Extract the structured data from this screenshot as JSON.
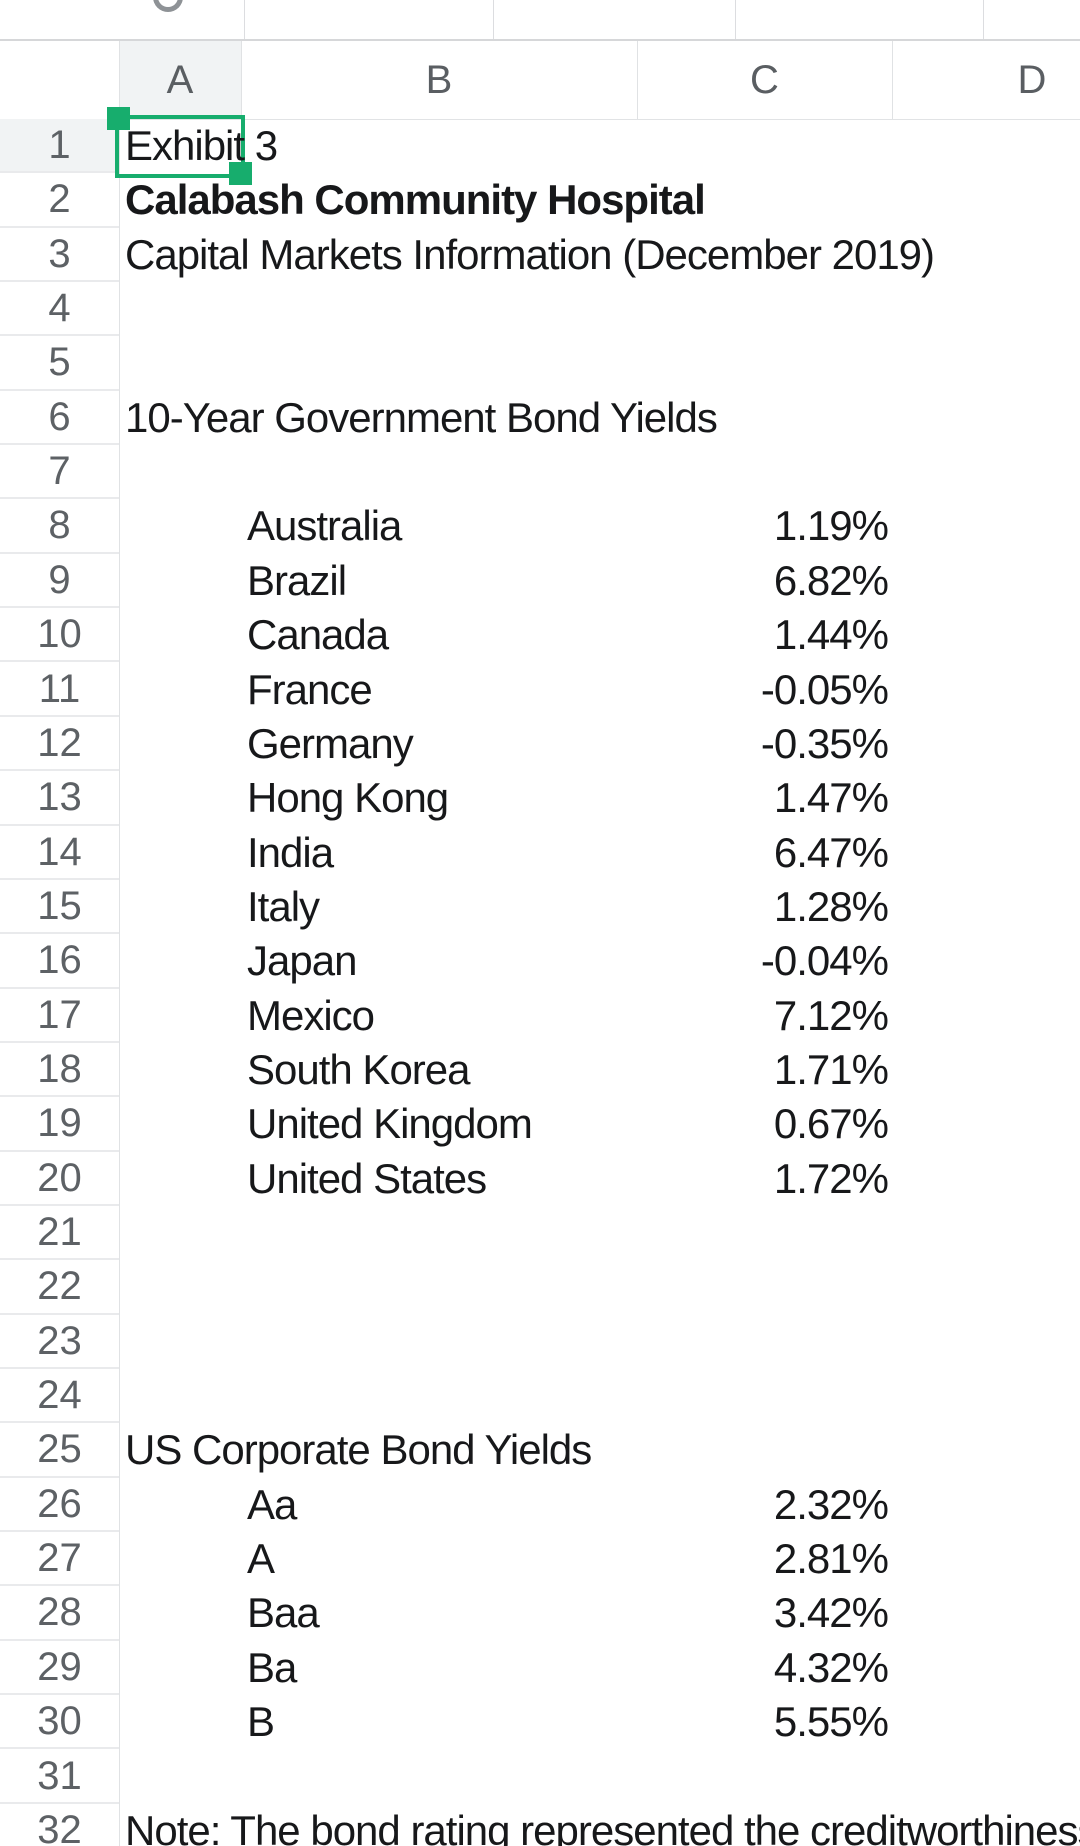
{
  "top_strip": {
    "clipped_glyph_icon": "partial-letter-bottom-curve-icon"
  },
  "grid": {
    "column_headers": [
      "A",
      "B",
      "C",
      "D"
    ],
    "row_numbers": [
      1,
      2,
      3,
      4,
      5,
      6,
      7,
      8,
      9,
      10,
      11,
      12,
      13,
      14,
      15,
      16,
      17,
      18,
      19,
      20,
      21,
      22,
      23,
      24,
      25,
      26,
      27,
      28,
      29,
      30,
      31,
      32
    ],
    "selection": {
      "cell": "A1",
      "row": 1,
      "col": "A",
      "value": "Exhibit 3"
    },
    "cells": [
      {
        "row": 1,
        "col": "A",
        "text": "Exhibit 3"
      },
      {
        "row": 2,
        "col": "A",
        "text": "Calabash Community Hospital",
        "bold": true
      },
      {
        "row": 3,
        "col": "A",
        "text": "Capital Markets Information (December 2019)"
      },
      {
        "row": 6,
        "col": "A",
        "text": "10-Year Government Bond Yields"
      },
      {
        "row": 8,
        "col": "B",
        "text": "Australia"
      },
      {
        "row": 8,
        "col": "C",
        "text": "1.19%"
      },
      {
        "row": 9,
        "col": "B",
        "text": "Brazil"
      },
      {
        "row": 9,
        "col": "C",
        "text": "6.82%"
      },
      {
        "row": 10,
        "col": "B",
        "text": "Canada"
      },
      {
        "row": 10,
        "col": "C",
        "text": "1.44%"
      },
      {
        "row": 11,
        "col": "B",
        "text": "France"
      },
      {
        "row": 11,
        "col": "C",
        "text": "-0.05%"
      },
      {
        "row": 12,
        "col": "B",
        "text": "Germany"
      },
      {
        "row": 12,
        "col": "C",
        "text": "-0.35%"
      },
      {
        "row": 13,
        "col": "B",
        "text": "Hong Kong"
      },
      {
        "row": 13,
        "col": "C",
        "text": "1.47%"
      },
      {
        "row": 14,
        "col": "B",
        "text": "India"
      },
      {
        "row": 14,
        "col": "C",
        "text": "6.47%"
      },
      {
        "row": 15,
        "col": "B",
        "text": "Italy"
      },
      {
        "row": 15,
        "col": "C",
        "text": "1.28%"
      },
      {
        "row": 16,
        "col": "B",
        "text": "Japan"
      },
      {
        "row": 16,
        "col": "C",
        "text": "-0.04%"
      },
      {
        "row": 17,
        "col": "B",
        "text": "Mexico"
      },
      {
        "row": 17,
        "col": "C",
        "text": "7.12%"
      },
      {
        "row": 18,
        "col": "B",
        "text": "South Korea"
      },
      {
        "row": 18,
        "col": "C",
        "text": "1.71%"
      },
      {
        "row": 19,
        "col": "B",
        "text": "United Kingdom"
      },
      {
        "row": 19,
        "col": "C",
        "text": "0.67%"
      },
      {
        "row": 20,
        "col": "B",
        "text": "United States"
      },
      {
        "row": 20,
        "col": "C",
        "text": "1.72%"
      },
      {
        "row": 25,
        "col": "A",
        "text": "US Corporate Bond Yields"
      },
      {
        "row": 26,
        "col": "B",
        "text": "Aa"
      },
      {
        "row": 26,
        "col": "C",
        "text": "2.32%"
      },
      {
        "row": 27,
        "col": "B",
        "text": "A"
      },
      {
        "row": 27,
        "col": "C",
        "text": "2.81%"
      },
      {
        "row": 28,
        "col": "B",
        "text": "Baa"
      },
      {
        "row": 28,
        "col": "C",
        "text": "3.42%"
      },
      {
        "row": 29,
        "col": "B",
        "text": "Ba"
      },
      {
        "row": 29,
        "col": "C",
        "text": "4.32%"
      },
      {
        "row": 30,
        "col": "B",
        "text": "B"
      },
      {
        "row": 30,
        "col": "C",
        "text": "5.55%"
      },
      {
        "row": 32,
        "col": "A",
        "text": "Note: The bond rating represented the creditworthiness of the bor"
      }
    ]
  },
  "colors": {
    "selection_green": "#17ad6d",
    "selected_header_fill": "#f1f3f4",
    "grid_line": "#e0e2e4",
    "header_text": "#5d6165",
    "cell_text": "#17181a"
  }
}
